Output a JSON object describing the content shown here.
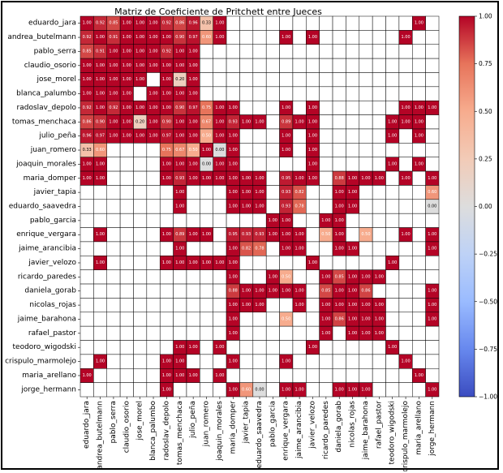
{
  "chart_data": {
    "type": "heatmap",
    "title": "Matriz de Coeficiente de Pritchett entre Jueces",
    "labels": [
      "eduardo_jara",
      "andrea_butelmann",
      "pablo_serra",
      "claudio_osorio",
      "jose_morel",
      "blanca_palumbo",
      "radoslav_depolo",
      "tomas_menchaca",
      "julio_peña",
      "juan_romero",
      "joaquin_morales",
      "maria_domper",
      "javier_tapia",
      "eduardo_saavedra",
      "pablo_garcia",
      "enrique_vergara",
      "jaime_arancibia",
      "javier_velozo",
      "ricardo_paredes",
      "daniela_gorab",
      "nicolas_rojas",
      "jaime_barahona",
      "rafael_pastor",
      "teodoro_wigodski",
      "crispulo_marmolejo",
      "maria_arellano",
      "jorge_hermann"
    ],
    "matrix": [
      [
        1.0,
        0.92,
        0.85,
        1.0,
        1.0,
        1.0,
        0.92,
        0.86,
        0.96,
        0.33,
        1.0,
        null,
        null,
        null,
        null,
        null,
        null,
        null,
        null,
        null,
        null,
        null,
        null,
        null,
        null,
        1.0,
        null
      ],
      [
        0.92,
        1.0,
        0.91,
        1.0,
        1.0,
        1.0,
        1.0,
        0.9,
        0.97,
        0.6,
        1.0,
        null,
        null,
        null,
        null,
        1.0,
        null,
        1.0,
        null,
        null,
        null,
        null,
        null,
        null,
        1.0,
        null,
        null
      ],
      [
        0.85,
        0.91,
        1.0,
        1.0,
        1.0,
        1.0,
        0.92,
        1.0,
        1.0,
        null,
        null,
        null,
        null,
        null,
        null,
        null,
        null,
        null,
        null,
        null,
        null,
        null,
        null,
        null,
        null,
        null,
        null
      ],
      [
        1.0,
        1.0,
        1.0,
        1.0,
        1.0,
        1.0,
        1.0,
        1.0,
        1.0,
        null,
        null,
        null,
        null,
        null,
        null,
        null,
        null,
        null,
        null,
        null,
        null,
        null,
        null,
        null,
        null,
        null,
        null
      ],
      [
        1.0,
        1.0,
        1.0,
        1.0,
        1.0,
        null,
        1.0,
        0.2,
        1.0,
        null,
        null,
        null,
        null,
        null,
        null,
        null,
        null,
        null,
        null,
        null,
        null,
        null,
        null,
        null,
        null,
        null,
        null
      ],
      [
        1.0,
        1.0,
        1.0,
        1.0,
        null,
        1.0,
        1.0,
        1.0,
        1.0,
        null,
        null,
        null,
        null,
        null,
        null,
        null,
        null,
        null,
        null,
        null,
        null,
        null,
        null,
        null,
        null,
        null,
        null
      ],
      [
        0.92,
        1.0,
        0.92,
        1.0,
        1.0,
        1.0,
        1.0,
        0.9,
        0.97,
        0.75,
        1.0,
        1.0,
        null,
        null,
        null,
        1.0,
        null,
        1.0,
        null,
        null,
        null,
        null,
        null,
        null,
        1.0,
        1.0,
        1.0
      ],
      [
        0.86,
        0.9,
        1.0,
        1.0,
        0.2,
        1.0,
        0.9,
        1.0,
        1.0,
        0.67,
        1.0,
        0.93,
        1.0,
        1.0,
        null,
        0.89,
        1.0,
        1.0,
        null,
        null,
        null,
        null,
        null,
        1.0,
        1.0,
        1.0,
        null
      ],
      [
        0.96,
        0.97,
        1.0,
        1.0,
        1.0,
        1.0,
        0.97,
        1.0,
        1.0,
        0.5,
        1.0,
        1.0,
        null,
        null,
        null,
        1.0,
        null,
        1.0,
        null,
        null,
        null,
        null,
        null,
        1.0,
        null,
        1.0,
        null
      ],
      [
        0.33,
        0.6,
        null,
        null,
        null,
        null,
        0.75,
        0.67,
        0.5,
        1.0,
        0.0,
        1.0,
        null,
        null,
        null,
        1.0,
        null,
        1.0,
        null,
        null,
        null,
        null,
        null,
        null,
        null,
        null,
        null
      ],
      [
        1.0,
        1.0,
        null,
        null,
        null,
        null,
        1.0,
        1.0,
        1.0,
        0.0,
        1.0,
        1.0,
        null,
        null,
        null,
        null,
        null,
        1.0,
        null,
        null,
        null,
        null,
        null,
        1.0,
        null,
        1.0,
        null
      ],
      [
        1.0,
        1.0,
        null,
        null,
        null,
        null,
        1.0,
        0.93,
        1.0,
        1.0,
        1.0,
        1.0,
        1.0,
        1.0,
        null,
        0.95,
        1.0,
        1.0,
        null,
        0.88,
        1.0,
        1.0,
        1.0,
        null,
        1.0,
        null,
        1.0
      ],
      [
        null,
        null,
        null,
        null,
        null,
        null,
        null,
        1.0,
        null,
        null,
        null,
        1.0,
        1.0,
        1.0,
        null,
        0.93,
        0.82,
        null,
        null,
        1.0,
        1.0,
        null,
        null,
        null,
        null,
        null,
        0.6
      ],
      [
        null,
        null,
        null,
        null,
        null,
        null,
        null,
        1.0,
        null,
        null,
        null,
        1.0,
        1.0,
        1.0,
        null,
        0.93,
        0.78,
        null,
        null,
        1.0,
        1.0,
        null,
        null,
        null,
        null,
        null,
        0.0
      ],
      [
        null,
        null,
        null,
        null,
        null,
        null,
        null,
        null,
        null,
        null,
        null,
        null,
        null,
        null,
        1.0,
        1.0,
        null,
        null,
        1.0,
        1.0,
        null,
        null,
        null,
        null,
        null,
        null,
        null
      ],
      [
        null,
        1.0,
        null,
        null,
        null,
        null,
        1.0,
        0.89,
        1.0,
        1.0,
        null,
        0.95,
        0.93,
        0.93,
        1.0,
        1.0,
        1.0,
        null,
        0.5,
        1.0,
        null,
        0.5,
        null,
        null,
        1.0,
        null,
        1.0
      ],
      [
        null,
        null,
        null,
        null,
        null,
        null,
        null,
        1.0,
        null,
        null,
        null,
        1.0,
        0.82,
        0.78,
        null,
        1.0,
        1.0,
        null,
        null,
        1.0,
        1.0,
        null,
        null,
        null,
        null,
        null,
        1.0
      ],
      [
        null,
        1.0,
        null,
        null,
        null,
        null,
        1.0,
        1.0,
        1.0,
        1.0,
        1.0,
        1.0,
        null,
        null,
        null,
        null,
        null,
        1.0,
        null,
        null,
        null,
        null,
        null,
        1.0,
        null,
        null,
        null
      ],
      [
        null,
        null,
        null,
        null,
        null,
        null,
        null,
        null,
        null,
        null,
        null,
        1.0,
        null,
        null,
        1.0,
        0.5,
        null,
        null,
        1.0,
        0.85,
        1.0,
        1.0,
        1.0,
        null,
        null,
        null,
        null
      ],
      [
        null,
        null,
        null,
        null,
        null,
        null,
        null,
        null,
        null,
        null,
        null,
        0.88,
        1.0,
        1.0,
        1.0,
        1.0,
        1.0,
        null,
        0.85,
        1.0,
        1.0,
        0.86,
        null,
        null,
        null,
        null,
        1.0
      ],
      [
        null,
        null,
        null,
        null,
        null,
        null,
        null,
        null,
        null,
        null,
        null,
        1.0,
        1.0,
        1.0,
        null,
        null,
        1.0,
        null,
        1.0,
        1.0,
        1.0,
        1.0,
        1.0,
        null,
        null,
        null,
        1.0
      ],
      [
        null,
        null,
        null,
        null,
        null,
        null,
        null,
        null,
        null,
        null,
        null,
        1.0,
        null,
        null,
        null,
        0.5,
        null,
        null,
        1.0,
        0.86,
        1.0,
        1.0,
        1.0,
        null,
        null,
        null,
        1.0
      ],
      [
        null,
        null,
        null,
        null,
        null,
        null,
        null,
        null,
        null,
        null,
        null,
        1.0,
        null,
        null,
        null,
        null,
        null,
        null,
        1.0,
        null,
        1.0,
        1.0,
        1.0,
        null,
        null,
        null,
        null
      ],
      [
        null,
        null,
        null,
        null,
        null,
        null,
        null,
        1.0,
        1.0,
        null,
        1.0,
        null,
        null,
        null,
        null,
        null,
        null,
        1.0,
        null,
        null,
        null,
        null,
        null,
        1.0,
        null,
        null,
        null
      ],
      [
        null,
        1.0,
        null,
        null,
        null,
        null,
        1.0,
        1.0,
        null,
        null,
        null,
        1.0,
        null,
        null,
        null,
        1.0,
        null,
        null,
        null,
        null,
        null,
        null,
        null,
        null,
        1.0,
        null,
        null
      ],
      [
        1.0,
        null,
        null,
        null,
        null,
        null,
        1.0,
        1.0,
        1.0,
        null,
        1.0,
        null,
        null,
        null,
        null,
        null,
        null,
        null,
        null,
        null,
        null,
        null,
        null,
        null,
        null,
        1.0,
        null
      ],
      [
        null,
        null,
        null,
        null,
        null,
        null,
        1.0,
        null,
        null,
        null,
        null,
        1.0,
        0.6,
        0.0,
        null,
        1.0,
        1.0,
        null,
        null,
        1.0,
        1.0,
        1.0,
        null,
        null,
        null,
        null,
        1.0
      ]
    ],
    "vmin": -1.0,
    "vmax": 1.0,
    "colormap": "coolwarm",
    "colorbar_ticks": [
      1.0,
      0.75,
      0.5,
      0.25,
      0.0,
      -0.25,
      -0.5,
      -0.75,
      -1.0
    ],
    "colorbar_tick_labels": [
      "1.00",
      "0.75",
      "0.50",
      "0.25",
      "0.00",
      "−0.25",
      "−0.50",
      "−0.75",
      "−1.00"
    ],
    "colors": {
      "low": "#3b4cc0",
      "mid": "#dddddd",
      "high": "#b40426"
    }
  }
}
